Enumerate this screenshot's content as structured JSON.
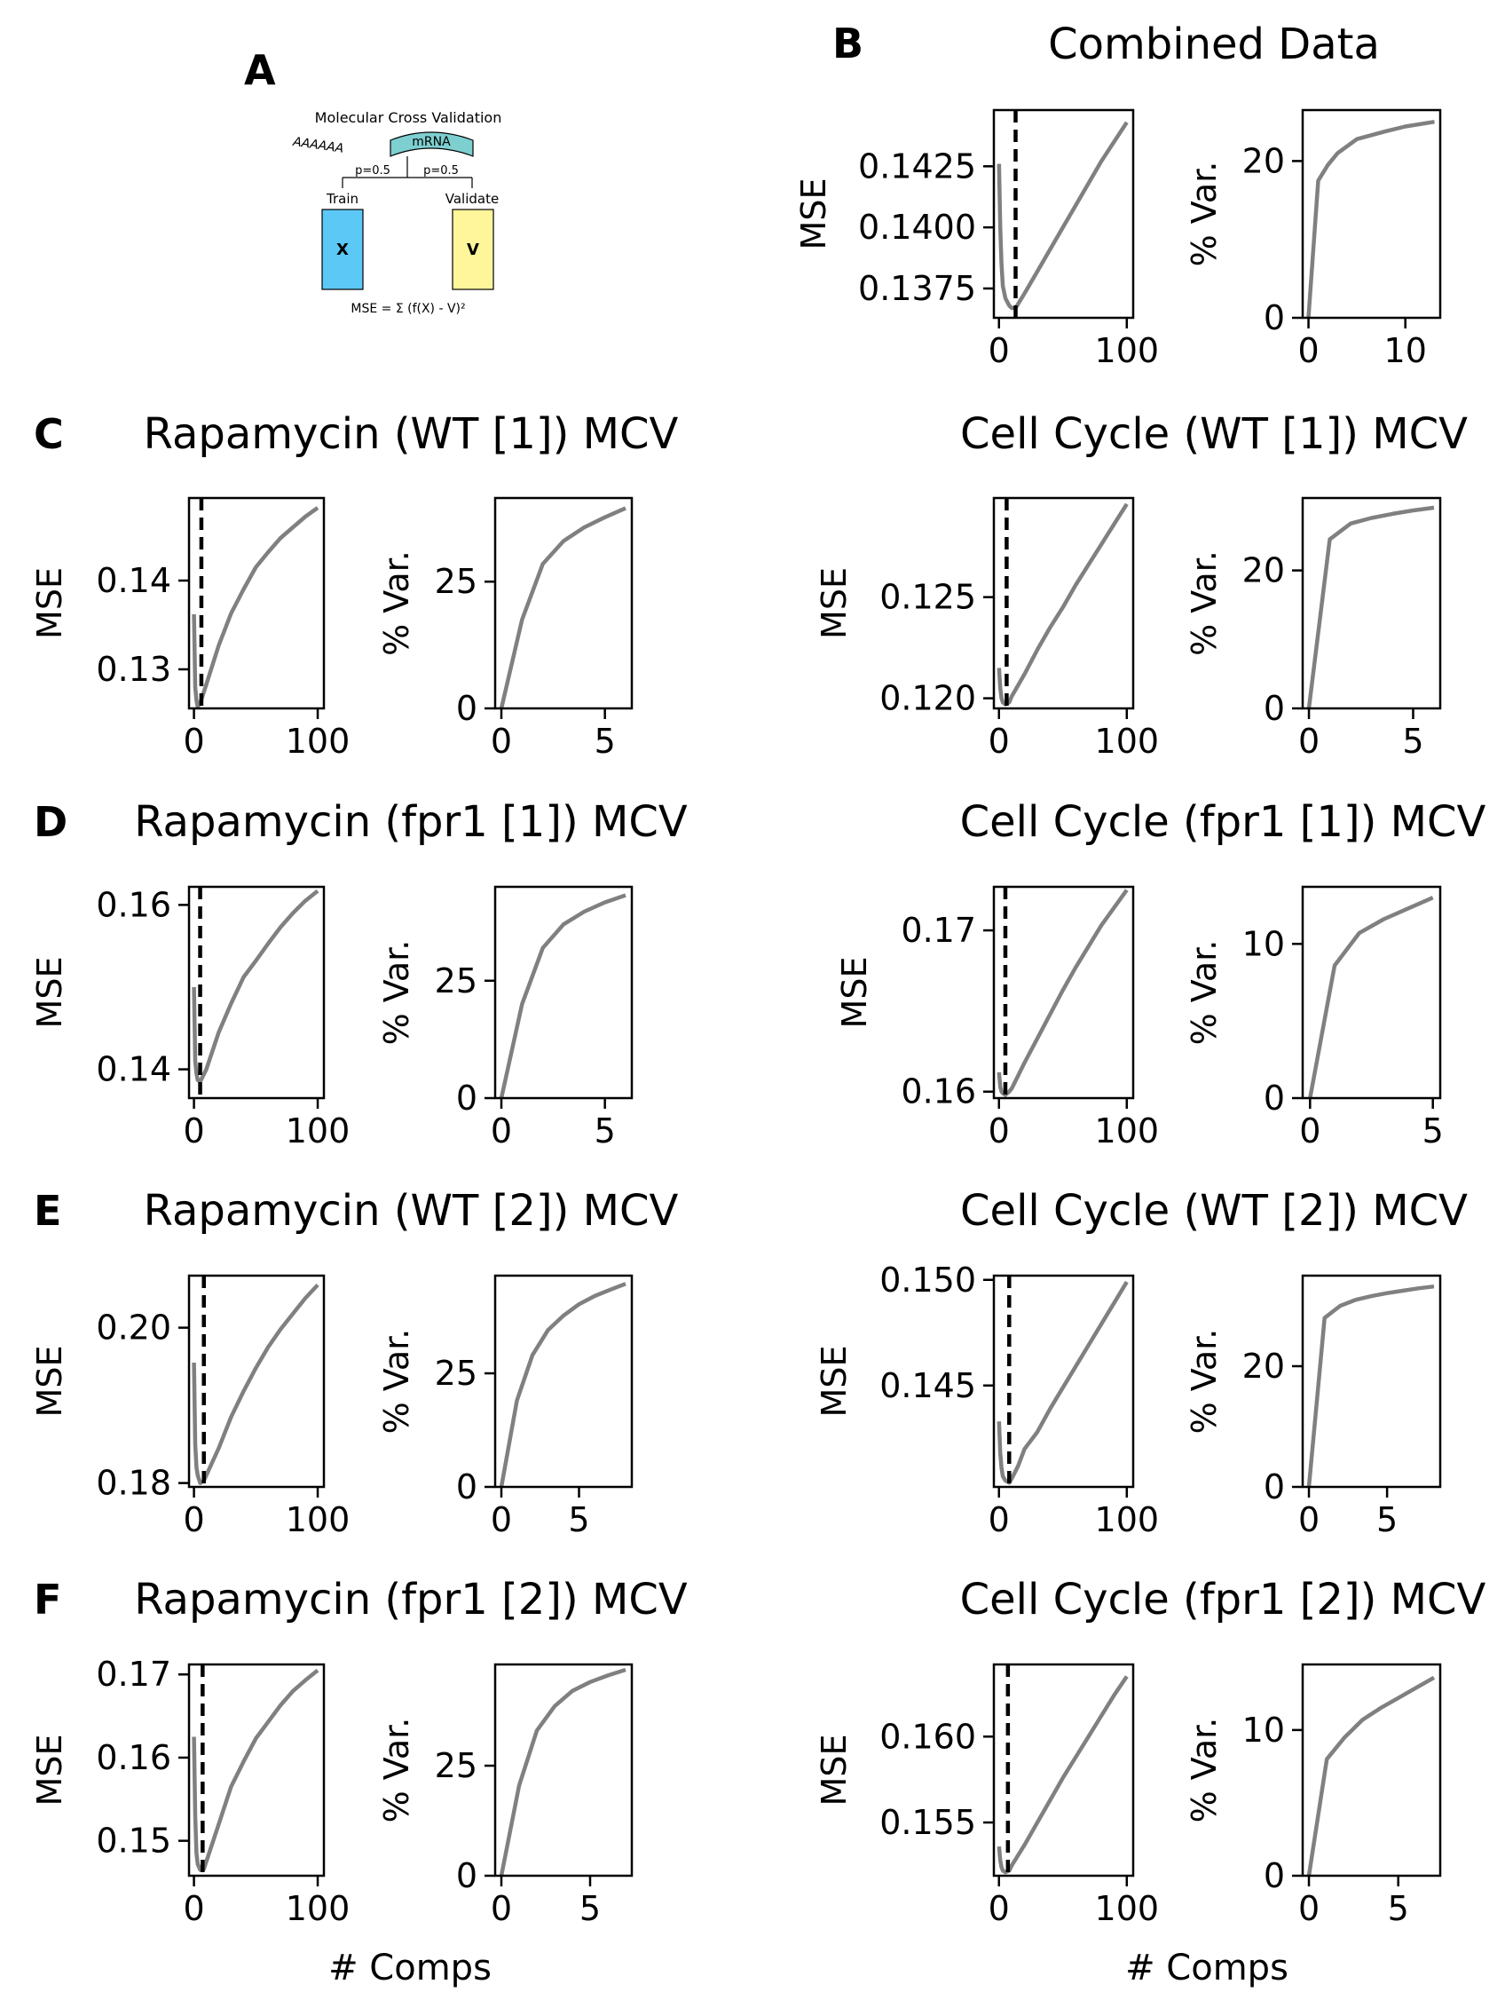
{
  "figure": {
    "panel_letters": [
      "A",
      "B",
      "C",
      "D",
      "E",
      "F"
    ],
    "xlabel": "# Comps",
    "mse_label": "MSE",
    "var_label": "% Var."
  },
  "schematic": {
    "title": "Molecular Cross Validation",
    "polya": "AAAAAA",
    "mrna": "mRNA",
    "p_left": "p=0.5",
    "p_right": "p=0.5",
    "train": "Train",
    "validate": "Validate",
    "x_letter": "X",
    "v_letter": "V",
    "formula": "MSE = Σ (f(X) - V)²",
    "colors": {
      "mrna": "#7ecfd0",
      "train": "#5bc8f5",
      "validate": "#fff59a"
    }
  },
  "chart_data": [
    {
      "title": "Combined Data",
      "type": "line",
      "mse": {
        "x": [
          0,
          1,
          2,
          3,
          5,
          8,
          10,
          13,
          20,
          30,
          40,
          50,
          60,
          70,
          80,
          90,
          100
        ],
        "y": [
          0.1426,
          0.14,
          0.1385,
          0.1376,
          0.1371,
          0.1368,
          0.1367,
          0.1367,
          0.1373,
          0.1382,
          0.1391,
          0.14,
          0.1409,
          0.1418,
          0.1427,
          0.1435,
          0.1443
        ],
        "yticks": [
          0.1375,
          0.14,
          0.1425
        ],
        "yticklabels": [
          "0.1375",
          "0.1400",
          "0.1425"
        ],
        "xlim": [
          -4,
          105
        ],
        "ylim": [
          0.1363,
          0.1448
        ],
        "xticks": [
          0,
          100
        ],
        "best": 13
      },
      "var": {
        "x": [
          0,
          1,
          2,
          3,
          5,
          8,
          10,
          13
        ],
        "y": [
          0,
          17.5,
          19.5,
          21.0,
          22.8,
          23.8,
          24.4,
          25.0
        ],
        "yticks": [
          0,
          20
        ],
        "xticks": [
          0,
          10
        ],
        "xlim": [
          -0.6,
          13.6
        ],
        "ylim": [
          0,
          26.5
        ]
      }
    },
    {
      "title": "Rapamycin (WT [1]) MCV",
      "type": "line",
      "mse": {
        "x": [
          0,
          1,
          2,
          3,
          5,
          10,
          20,
          30,
          40,
          50,
          60,
          70,
          80,
          90,
          100
        ],
        "y": [
          0.1362,
          0.128,
          0.1265,
          0.1258,
          0.1262,
          0.1283,
          0.1327,
          0.1363,
          0.139,
          0.1415,
          0.1432,
          0.1448,
          0.146,
          0.1472,
          0.1482
        ],
        "yticks": [
          0.13,
          0.14
        ],
        "yticklabels": [
          "0.13",
          "0.14"
        ],
        "xlim": [
          -4,
          105
        ],
        "ylim": [
          0.1256,
          0.1493
        ],
        "xticks": [
          0,
          100
        ],
        "best": 6
      },
      "var": {
        "x": [
          0,
          1,
          2,
          3,
          4,
          5,
          6
        ],
        "y": [
          0,
          17.5,
          28.5,
          33,
          35.7,
          37.7,
          39.5
        ],
        "yticks": [
          0,
          25
        ],
        "xticks": [
          0,
          5
        ],
        "xlim": [
          -0.3,
          6.3
        ],
        "ylim": [
          0,
          41.5
        ]
      }
    },
    {
      "title": "Cell Cycle (WT [1]) MCV",
      "type": "line",
      "mse": {
        "x": [
          0,
          1,
          2,
          3,
          5,
          8,
          10,
          20,
          30,
          40,
          50,
          60,
          70,
          80,
          90,
          100
        ],
        "y": [
          0.1215,
          0.1205,
          0.12,
          0.1198,
          0.1197,
          0.1198,
          0.1201,
          0.1212,
          0.1224,
          0.1235,
          0.1245,
          0.1256,
          0.1266,
          0.1276,
          0.1286,
          0.1296
        ],
        "yticks": [
          0.12,
          0.125
        ],
        "yticklabels": [
          "0.120",
          "0.125"
        ],
        "xlim": [
          -4,
          105
        ],
        "ylim": [
          0.1195,
          0.1299
        ],
        "xticks": [
          0,
          100
        ],
        "best": 6
      },
      "var": {
        "x": [
          0,
          1,
          2,
          3,
          4,
          5,
          6
        ],
        "y": [
          0,
          24.5,
          26.8,
          27.6,
          28.2,
          28.7,
          29.1
        ],
        "yticks": [
          0,
          20
        ],
        "xticks": [
          0,
          5
        ],
        "xlim": [
          -0.3,
          6.3
        ],
        "ylim": [
          0,
          30.5
        ]
      }
    },
    {
      "title": "Rapamycin (fpr1 [1]) MCV",
      "type": "line",
      "mse": {
        "x": [
          0,
          1,
          2,
          3,
          5,
          10,
          20,
          30,
          40,
          50,
          60,
          70,
          80,
          90,
          100
        ],
        "y": [
          0.15,
          0.141,
          0.1395,
          0.1387,
          0.1385,
          0.14,
          0.1445,
          0.148,
          0.1512,
          0.1532,
          0.1553,
          0.1573,
          0.159,
          0.1605,
          0.1617
        ],
        "yticks": [
          0.14,
          0.16
        ],
        "yticklabels": [
          "0.14",
          "0.16"
        ],
        "xlim": [
          -4,
          105
        ],
        "ylim": [
          0.1365,
          0.1622
        ],
        "xticks": [
          0,
          100
        ],
        "best": 5
      },
      "var": {
        "x": [
          0,
          1,
          2,
          3,
          4,
          5,
          6
        ],
        "y": [
          0,
          20,
          32,
          37,
          39.7,
          41.7,
          43.2
        ],
        "yticks": [
          0,
          25
        ],
        "xticks": [
          0,
          5
        ],
        "xlim": [
          -0.3,
          6.3
        ],
        "ylim": [
          0,
          45
        ]
      }
    },
    {
      "title": "Cell Cycle (fpr1 [1]) MCV",
      "type": "line",
      "mse": {
        "x": [
          0,
          1,
          2,
          3,
          5,
          8,
          10,
          20,
          30,
          40,
          50,
          60,
          70,
          80,
          90,
          100
        ],
        "y": [
          0.1612,
          0.1603,
          0.16,
          0.1599,
          0.1598,
          0.16,
          0.1602,
          0.1618,
          0.1633,
          0.1648,
          0.1663,
          0.1677,
          0.169,
          0.1703,
          0.1714,
          0.1725
        ],
        "yticks": [
          0.16,
          0.17
        ],
        "yticklabels": [
          "0.16",
          "0.17"
        ],
        "xlim": [
          -4,
          105
        ],
        "ylim": [
          0.1596,
          0.1727
        ],
        "xticks": [
          0,
          100
        ],
        "best": 5
      },
      "var": {
        "x": [
          0,
          1,
          2,
          3,
          4,
          5
        ],
        "y": [
          0,
          8.6,
          10.7,
          11.6,
          12.3,
          13.0
        ],
        "yticks": [
          0,
          10
        ],
        "xticks": [
          0,
          5
        ],
        "xlim": [
          -0.3,
          5.3
        ],
        "ylim": [
          0,
          13.7
        ]
      }
    },
    {
      "title": "Rapamycin (WT [2]) MCV",
      "type": "line",
      "mse": {
        "x": [
          0,
          1,
          2,
          3,
          5,
          8,
          10,
          20,
          30,
          40,
          50,
          60,
          70,
          80,
          90,
          100
        ],
        "y": [
          0.1955,
          0.185,
          0.182,
          0.181,
          0.18,
          0.1803,
          0.181,
          0.1845,
          0.1885,
          0.1918,
          0.1948,
          0.1975,
          0.1998,
          0.2018,
          0.2038,
          0.2055
        ],
        "yticks": [
          0.18,
          0.2
        ],
        "yticklabels": [
          "0.18",
          "0.20"
        ],
        "xlim": [
          -4,
          105
        ],
        "ylim": [
          0.1795,
          0.2067
        ],
        "xticks": [
          0,
          100
        ],
        "best": 8
      },
      "var": {
        "x": [
          0,
          1,
          2,
          3,
          4,
          5,
          6,
          7,
          8
        ],
        "y": [
          0,
          19,
          29,
          34.5,
          37.7,
          40.2,
          42,
          43.4,
          44.7
        ],
        "yticks": [
          0,
          25
        ],
        "xticks": [
          0,
          5
        ],
        "xlim": [
          -0.4,
          8.4
        ],
        "ylim": [
          0,
          46.5
        ]
      }
    },
    {
      "title": "Cell Cycle (WT [2]) MCV",
      "type": "line",
      "mse": {
        "x": [
          0,
          1,
          2,
          3,
          5,
          8,
          10,
          15,
          20,
          30,
          40,
          50,
          60,
          70,
          80,
          90,
          100
        ],
        "y": [
          0.1433,
          0.1418,
          0.1411,
          0.1407,
          0.1405,
          0.1404,
          0.1406,
          0.1412,
          0.142,
          0.1428,
          0.1439,
          0.1449,
          0.1459,
          0.1469,
          0.1479,
          0.1489,
          0.1499
        ],
        "yticks": [
          0.145,
          0.15
        ],
        "yticklabels": [
          "0.145",
          "0.150"
        ],
        "xlim": [
          -4,
          105
        ],
        "ylim": [
          0.1402,
          0.1502
        ],
        "xticks": [
          0,
          100
        ],
        "best": 8
      },
      "var": {
        "x": [
          0,
          1,
          2,
          3,
          4,
          5,
          6,
          7,
          8
        ],
        "y": [
          0,
          28,
          30,
          31,
          31.6,
          32.1,
          32.5,
          32.9,
          33.2
        ],
        "yticks": [
          0,
          20
        ],
        "xticks": [
          0,
          5
        ],
        "xlim": [
          -0.4,
          8.4
        ],
        "ylim": [
          0,
          35
        ]
      }
    },
    {
      "title": "Rapamycin (fpr1 [2]) MCV",
      "type": "line",
      "mse": {
        "x": [
          0,
          1,
          2,
          3,
          5,
          8,
          10,
          20,
          30,
          40,
          50,
          60,
          70,
          80,
          90,
          100
        ],
        "y": [
          0.1625,
          0.153,
          0.1485,
          0.1472,
          0.1465,
          0.1466,
          0.1475,
          0.152,
          0.1565,
          0.1595,
          0.1623,
          0.1643,
          0.1663,
          0.168,
          0.1693,
          0.1705
        ],
        "yticks": [
          0.15,
          0.16,
          0.17
        ],
        "yticklabels": [
          "0.15",
          "0.16",
          "0.17"
        ],
        "xlim": [
          -4,
          105
        ],
        "ylim": [
          0.1458,
          0.1712
        ],
        "xticks": [
          0,
          100
        ],
        "best": 7
      },
      "var": {
        "x": [
          0,
          1,
          2,
          3,
          4,
          5,
          6,
          7
        ],
        "y": [
          0,
          20.5,
          33,
          38.5,
          42,
          44,
          45.5,
          46.8
        ],
        "yticks": [
          0,
          25
        ],
        "xticks": [
          0,
          5
        ],
        "xlim": [
          -0.35,
          7.35
        ],
        "ylim": [
          0,
          48
        ]
      }
    },
    {
      "title": "Cell Cycle (fpr1 [2]) MCV",
      "type": "line",
      "mse": {
        "x": [
          0,
          1,
          2,
          3,
          5,
          8,
          10,
          20,
          30,
          40,
          50,
          60,
          70,
          80,
          90,
          100
        ],
        "y": [
          0.1536,
          0.1528,
          0.1524,
          0.1522,
          0.1521,
          0.1522,
          0.1525,
          0.1537,
          0.155,
          0.1563,
          0.1576,
          0.1588,
          0.16,
          0.1612,
          0.1624,
          0.1635
        ],
        "yticks": [
          0.155,
          0.16
        ],
        "yticklabels": [
          "0.155",
          "0.160"
        ],
        "xlim": [
          -4,
          105
        ],
        "ylim": [
          0.1519,
          0.1642
        ],
        "xticks": [
          0,
          100
        ],
        "best": 7
      },
      "var": {
        "x": [
          0,
          1,
          2,
          3,
          4,
          5,
          6,
          7
        ],
        "y": [
          0,
          8,
          9.5,
          10.7,
          11.5,
          12.2,
          12.9,
          13.6
        ],
        "yticks": [
          0,
          10
        ],
        "xticks": [
          0,
          5
        ],
        "xlim": [
          -0.35,
          7.35
        ],
        "ylim": [
          0,
          14.5
        ]
      }
    }
  ]
}
